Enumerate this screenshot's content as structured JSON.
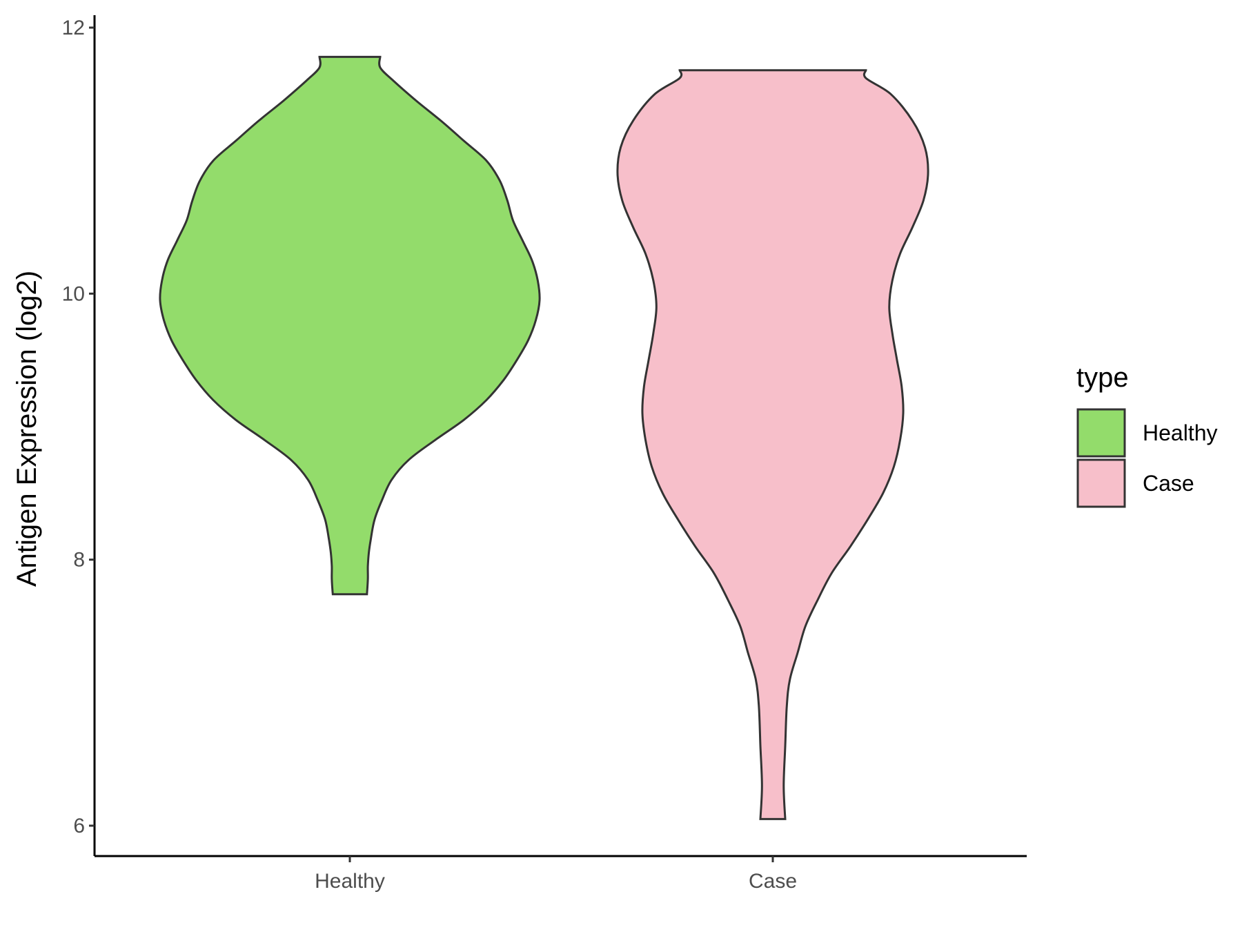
{
  "chart_data": {
    "type": "violin",
    "title": "",
    "xlabel": "",
    "ylabel": "Antigen Expression (log2)",
    "ylim": [
      5.8,
      12.1
    ],
    "yticks": [
      6,
      8,
      10,
      12
    ],
    "categories": [
      "Healthy",
      "Case"
    ],
    "grid": false,
    "legend": {
      "title": "type",
      "placement": "right",
      "entries": [
        {
          "label": "Healthy",
          "color": "#93dc6b"
        },
        {
          "label": "Case",
          "color": "#f7bfca"
        }
      ]
    },
    "series": [
      {
        "name": "Healthy",
        "color": "#93dc6b",
        "min": 7.74,
        "max": 11.78,
        "density_profile": [
          [
            7.74,
            0.09
          ],
          [
            7.85,
            0.095
          ],
          [
            7.95,
            0.095
          ],
          [
            8.05,
            0.1
          ],
          [
            8.15,
            0.11
          ],
          [
            8.3,
            0.13
          ],
          [
            8.45,
            0.17
          ],
          [
            8.6,
            0.22
          ],
          [
            8.75,
            0.31
          ],
          [
            8.9,
            0.45
          ],
          [
            9.05,
            0.6
          ],
          [
            9.2,
            0.72
          ],
          [
            9.35,
            0.81
          ],
          [
            9.5,
            0.88
          ],
          [
            9.65,
            0.94
          ],
          [
            9.8,
            0.98
          ],
          [
            9.95,
            1.0
          ],
          [
            10.1,
            0.99
          ],
          [
            10.25,
            0.96
          ],
          [
            10.4,
            0.91
          ],
          [
            10.55,
            0.86
          ],
          [
            10.7,
            0.83
          ],
          [
            10.85,
            0.79
          ],
          [
            11.0,
            0.72
          ],
          [
            11.15,
            0.6
          ],
          [
            11.3,
            0.48
          ],
          [
            11.45,
            0.35
          ],
          [
            11.6,
            0.23
          ],
          [
            11.7,
            0.16
          ],
          [
            11.78,
            0.16
          ]
        ]
      },
      {
        "name": "Case",
        "color": "#f7bfca",
        "min": 6.05,
        "max": 11.68,
        "density_profile": [
          [
            6.05,
            0.08
          ],
          [
            6.3,
            0.07
          ],
          [
            6.6,
            0.08
          ],
          [
            6.9,
            0.09
          ],
          [
            7.1,
            0.11
          ],
          [
            7.3,
            0.16
          ],
          [
            7.5,
            0.21
          ],
          [
            7.7,
            0.29
          ],
          [
            7.9,
            0.38
          ],
          [
            8.1,
            0.5
          ],
          [
            8.3,
            0.61
          ],
          [
            8.5,
            0.71
          ],
          [
            8.7,
            0.78
          ],
          [
            8.9,
            0.82
          ],
          [
            9.1,
            0.84
          ],
          [
            9.3,
            0.83
          ],
          [
            9.5,
            0.8
          ],
          [
            9.7,
            0.77
          ],
          [
            9.9,
            0.75
          ],
          [
            10.1,
            0.77
          ],
          [
            10.3,
            0.82
          ],
          [
            10.5,
            0.9
          ],
          [
            10.7,
            0.97
          ],
          [
            10.9,
            1.0
          ],
          [
            11.1,
            0.98
          ],
          [
            11.3,
            0.9
          ],
          [
            11.5,
            0.76
          ],
          [
            11.62,
            0.6
          ],
          [
            11.68,
            0.6
          ]
        ]
      }
    ]
  }
}
